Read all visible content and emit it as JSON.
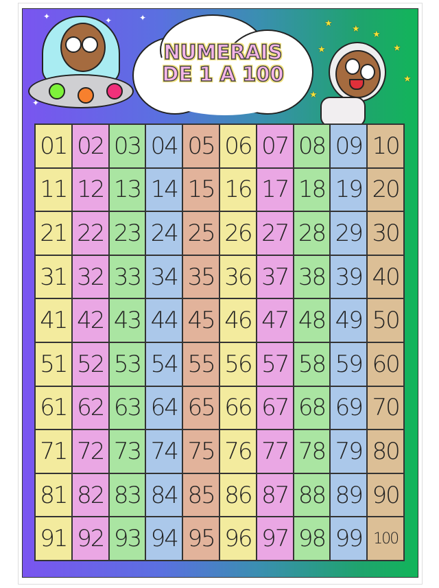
{
  "poster": {
    "title_line1": "NUMERAIS",
    "title_line2": "DE 1 A 100"
  },
  "column_colors": [
    "#f3eb9e",
    "#eaa7e4",
    "#aae5a2",
    "#abc8ea",
    "#e2b39b",
    "#f3eb9e",
    "#eaa7e4",
    "#aae5a2",
    "#abc8ea",
    "#dcbf96"
  ],
  "numbers": [
    "01",
    "02",
    "03",
    "04",
    "05",
    "06",
    "07",
    "08",
    "09",
    "10",
    "11",
    "12",
    "13",
    "14",
    "15",
    "16",
    "17",
    "18",
    "19",
    "20",
    "21",
    "22",
    "23",
    "24",
    "25",
    "26",
    "27",
    "28",
    "29",
    "30",
    "31",
    "32",
    "33",
    "34",
    "35",
    "36",
    "37",
    "38",
    "39",
    "40",
    "41",
    "42",
    "43",
    "44",
    "45",
    "46",
    "47",
    "48",
    "49",
    "50",
    "51",
    "52",
    "53",
    "54",
    "55",
    "56",
    "57",
    "58",
    "59",
    "60",
    "61",
    "62",
    "63",
    "64",
    "65",
    "66",
    "67",
    "68",
    "69",
    "70",
    "71",
    "72",
    "73",
    "74",
    "75",
    "76",
    "77",
    "78",
    "79",
    "80",
    "81",
    "82",
    "83",
    "84",
    "85",
    "86",
    "87",
    "88",
    "89",
    "90",
    "91",
    "92",
    "93",
    "94",
    "95",
    "96",
    "97",
    "98",
    "99",
    "100"
  ]
}
